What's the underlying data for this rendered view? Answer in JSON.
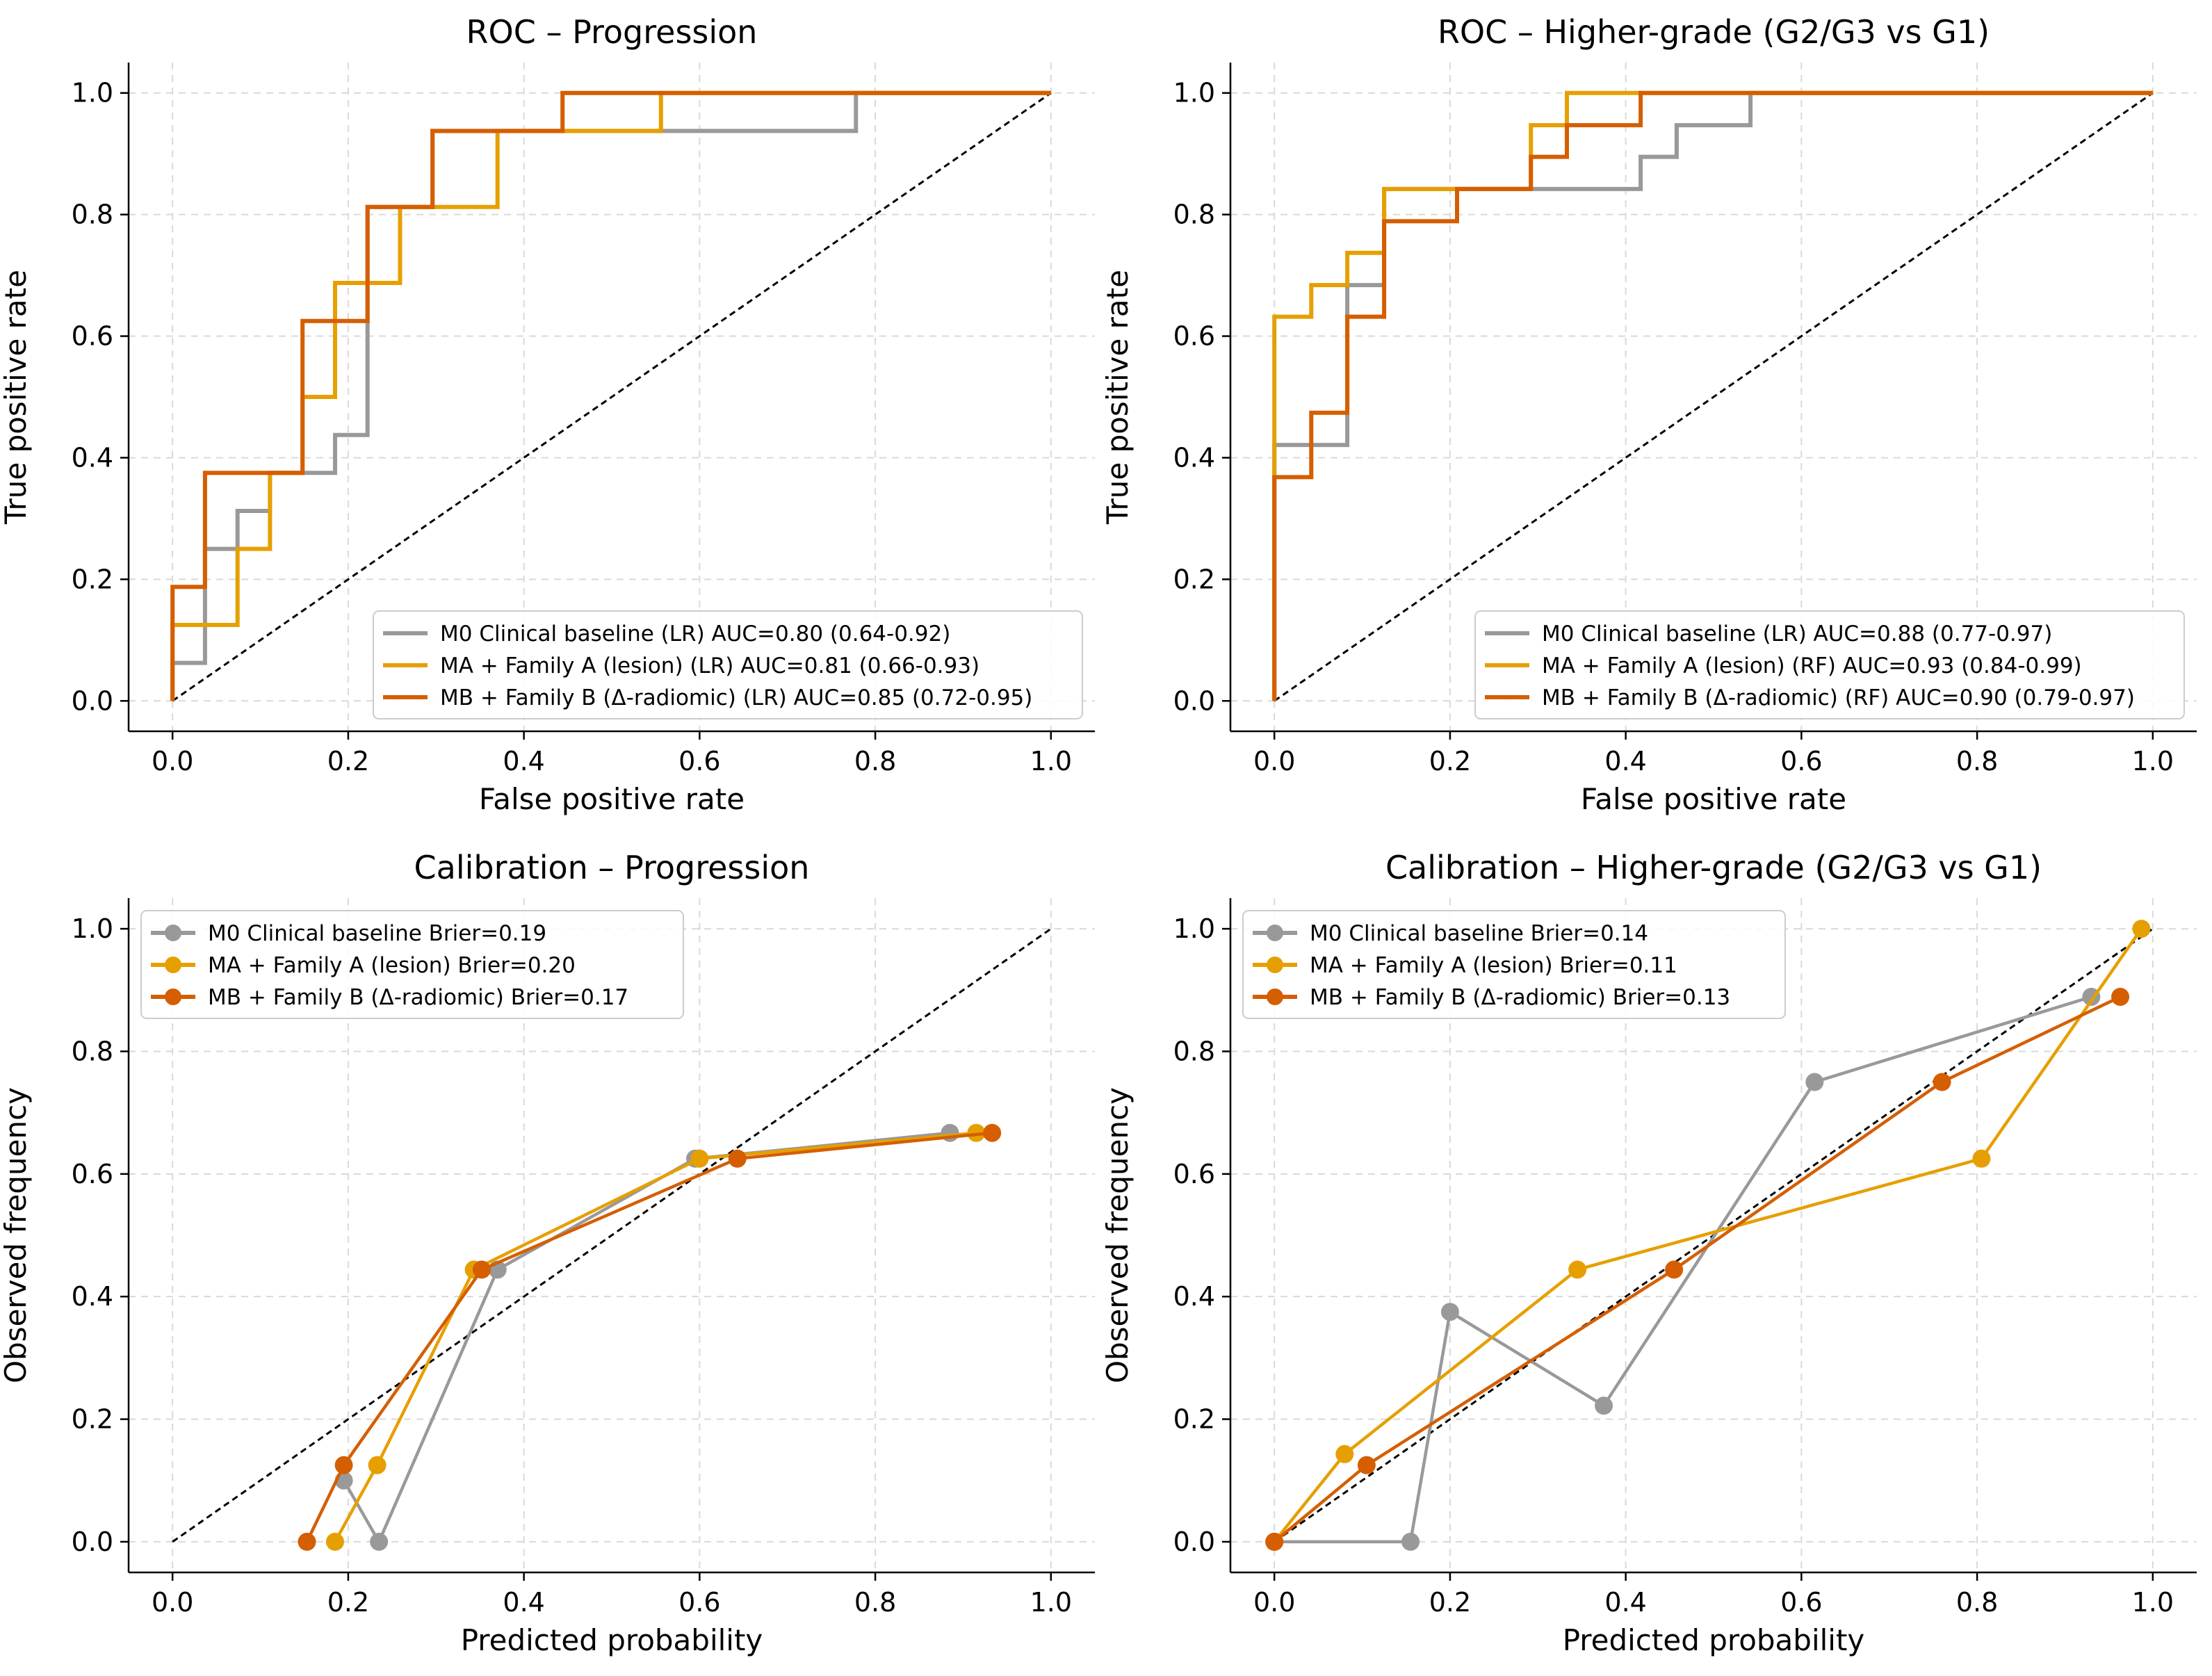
{
  "colors": {
    "m0": "#999999",
    "ma": "#E69F00",
    "mb": "#D55E00",
    "grid": "#d9d9d9",
    "diag": "#000000"
  },
  "chart_data": [
    {
      "id": "roc-progression",
      "type": "line",
      "title": "ROC – Progression",
      "xlabel": "False positive rate",
      "ylabel": "True positive rate",
      "xlim": [
        -0.05,
        1.05
      ],
      "ylim": [
        -0.05,
        1.05
      ],
      "xticks": [
        "0.0",
        "0.2",
        "0.4",
        "0.6",
        "0.8",
        "1.0"
      ],
      "yticks": [
        "0.0",
        "0.2",
        "0.4",
        "0.6",
        "0.8",
        "1.0"
      ],
      "grid": true,
      "diagonal": true,
      "legend_position": "lower-right",
      "series": [
        {
          "name": "M0  Clinical baseline (LR) AUC=0.80 (0.64-0.92)",
          "color": "#999999",
          "markers": false,
          "x": [
            0,
            0,
            0.037,
            0.037,
            0.074,
            0.074,
            0.111,
            0.111,
            0.185,
            0.185,
            0.222,
            0.222,
            0.296,
            0.296,
            0.444,
            0.444,
            0.778,
            0.778,
            1.0
          ],
          "y": [
            0,
            0.0625,
            0.0625,
            0.25,
            0.25,
            0.3125,
            0.3125,
            0.375,
            0.375,
            0.4375,
            0.4375,
            0.8125,
            0.8125,
            0.9375,
            0.9375,
            0.9375,
            0.9375,
            1.0,
            1.0
          ]
        },
        {
          "name": "MA  + Family A (lesion) (LR) AUC=0.81 (0.66-0.93)",
          "color": "#E69F00",
          "markers": false,
          "x": [
            0,
            0,
            0.074,
            0.074,
            0.111,
            0.111,
            0.148,
            0.148,
            0.185,
            0.185,
            0.259,
            0.259,
            0.37,
            0.37,
            0.556,
            0.556,
            1.0
          ],
          "y": [
            0,
            0.125,
            0.125,
            0.25,
            0.25,
            0.375,
            0.375,
            0.5,
            0.5,
            0.6875,
            0.6875,
            0.8125,
            0.8125,
            0.9375,
            0.9375,
            1.0,
            1.0
          ]
        },
        {
          "name": "MB  + Family B (Δ-radiomic) (LR) AUC=0.85 (0.72-0.95)",
          "color": "#D55E00",
          "markers": false,
          "x": [
            0,
            0,
            0.037,
            0.037,
            0.148,
            0.148,
            0.222,
            0.222,
            0.296,
            0.296,
            0.444,
            0.444,
            1.0
          ],
          "y": [
            0,
            0.1875,
            0.1875,
            0.375,
            0.375,
            0.625,
            0.625,
            0.8125,
            0.8125,
            0.9375,
            0.9375,
            1.0,
            1.0
          ]
        }
      ]
    },
    {
      "id": "roc-grade",
      "type": "line",
      "title": "ROC – Higher-grade (G2/G3 vs G1)",
      "xlabel": "False positive rate",
      "ylabel": "True positive rate",
      "xlim": [
        -0.05,
        1.05
      ],
      "ylim": [
        -0.05,
        1.05
      ],
      "xticks": [
        "0.0",
        "0.2",
        "0.4",
        "0.6",
        "0.8",
        "1.0"
      ],
      "yticks": [
        "0.0",
        "0.2",
        "0.4",
        "0.6",
        "0.8",
        "1.0"
      ],
      "grid": true,
      "diagonal": true,
      "legend_position": "lower-right",
      "series": [
        {
          "name": "M0  Clinical baseline (LR) AUC=0.88 (0.77-0.97)",
          "color": "#999999",
          "markers": false,
          "x": [
            0,
            0,
            0.083,
            0.083,
            0.125,
            0.125,
            0.292,
            0.292,
            0.417,
            0.417,
            0.458,
            0.458,
            0.542,
            0.542,
            1.0
          ],
          "y": [
            0,
            0.421,
            0.421,
            0.684,
            0.684,
            0.842,
            0.842,
            0.842,
            0.842,
            0.895,
            0.895,
            0.947,
            0.947,
            1.0,
            1.0
          ]
        },
        {
          "name": "MA  + Family A (lesion) (RF) AUC=0.93 (0.84-0.99)",
          "color": "#E69F00",
          "markers": false,
          "x": [
            0,
            0,
            0.042,
            0.042,
            0.083,
            0.083,
            0.125,
            0.125,
            0.292,
            0.292,
            0.333,
            0.333,
            1.0
          ],
          "y": [
            0,
            0.632,
            0.632,
            0.684,
            0.684,
            0.737,
            0.737,
            0.842,
            0.842,
            0.947,
            0.947,
            1.0,
            1.0
          ]
        },
        {
          "name": "MB  + Family B (Δ-radiomic) (RF) AUC=0.90 (0.79-0.97)",
          "color": "#D55E00",
          "markers": false,
          "x": [
            0,
            0,
            0.042,
            0.042,
            0.083,
            0.083,
            0.125,
            0.125,
            0.208,
            0.208,
            0.292,
            0.292,
            0.333,
            0.333,
            0.417,
            0.417,
            1.0
          ],
          "y": [
            0,
            0.368,
            0.368,
            0.474,
            0.474,
            0.632,
            0.632,
            0.789,
            0.789,
            0.842,
            0.842,
            0.895,
            0.895,
            0.947,
            0.947,
            1.0,
            1.0
          ]
        }
      ]
    },
    {
      "id": "cal-progression",
      "type": "line",
      "title": "Calibration – Progression",
      "xlabel": "Predicted probability",
      "ylabel": "Observed frequency",
      "xlim": [
        -0.05,
        1.05
      ],
      "ylim": [
        -0.05,
        1.05
      ],
      "xticks": [
        "0.0",
        "0.2",
        "0.4",
        "0.6",
        "0.8",
        "1.0"
      ],
      "yticks": [
        "0.0",
        "0.2",
        "0.4",
        "0.6",
        "0.8",
        "1.0"
      ],
      "grid": true,
      "diagonal": true,
      "legend_position": "upper-left",
      "series": [
        {
          "name": "M0  Clinical baseline  Brier=0.19",
          "color": "#999999",
          "markers": true,
          "x": [
            0.195,
            0.235,
            0.37,
            0.595,
            0.885
          ],
          "y": [
            0.1,
            0.0,
            0.444,
            0.625,
            0.667
          ]
        },
        {
          "name": "MA  + Family A (lesion)  Brier=0.20",
          "color": "#E69F00",
          "markers": true,
          "x": [
            0.185,
            0.233,
            0.343,
            0.6,
            0.915
          ],
          "y": [
            0.0,
            0.125,
            0.444,
            0.625,
            0.667
          ]
        },
        {
          "name": "MB  + Family B (Δ-radiomic)  Brier=0.17",
          "color": "#D55E00",
          "markers": true,
          "x": [
            0.153,
            0.195,
            0.352,
            0.643,
            0.933
          ],
          "y": [
            0.0,
            0.125,
            0.444,
            0.625,
            0.667
          ]
        }
      ]
    },
    {
      "id": "cal-grade",
      "type": "line",
      "title": "Calibration – Higher-grade (G2/G3 vs G1)",
      "xlabel": "Predicted probability",
      "ylabel": "Observed frequency",
      "xlim": [
        -0.05,
        1.05
      ],
      "ylim": [
        -0.05,
        1.05
      ],
      "xticks": [
        "0.0",
        "0.2",
        "0.4",
        "0.6",
        "0.8",
        "1.0"
      ],
      "yticks": [
        "0.0",
        "0.2",
        "0.4",
        "0.6",
        "0.8",
        "1.0"
      ],
      "grid": true,
      "diagonal": true,
      "legend_position": "upper-left",
      "series": [
        {
          "name": "M0  Clinical baseline  Brier=0.14",
          "color": "#999999",
          "markers": true,
          "x": [
            0.0,
            0.155,
            0.2,
            0.375,
            0.615,
            0.93
          ],
          "y": [
            0.0,
            0.0,
            0.375,
            0.222,
            0.75,
            0.889
          ]
        },
        {
          "name": "MA  + Family A (lesion)  Brier=0.11",
          "color": "#E69F00",
          "markers": true,
          "x": [
            0.0,
            0.08,
            0.345,
            0.805,
            0.987
          ],
          "y": [
            0.0,
            0.143,
            0.444,
            0.625,
            1.0
          ]
        },
        {
          "name": "MB  + Family B (Δ-radiomic)  Brier=0.13",
          "color": "#D55E00",
          "markers": true,
          "x": [
            0.0,
            0.105,
            0.455,
            0.76,
            0.963
          ],
          "y": [
            0.0,
            0.125,
            0.444,
            0.75,
            0.889
          ]
        }
      ]
    }
  ]
}
